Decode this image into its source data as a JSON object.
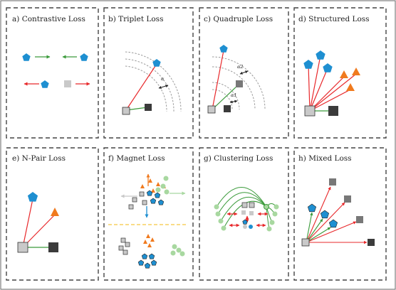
{
  "panels": [
    {
      "id": "contrastive",
      "title": "a) Contrastive Loss"
    },
    {
      "id": "triplet",
      "title": "b) Triplet Loss",
      "labels": [
        "α"
      ]
    },
    {
      "id": "quadruple",
      "title": "c) Quadruple Loss",
      "labels": [
        "α2",
        "α1"
      ]
    },
    {
      "id": "structured",
      "title": "d) Structured Loss"
    },
    {
      "id": "npair",
      "title": "e) N-Pair Loss"
    },
    {
      "id": "magnet",
      "title": "f) Magnet Loss"
    },
    {
      "id": "clustering",
      "title": "g) Clustering Loss"
    },
    {
      "id": "mixed",
      "title": "h) Mixed Loss"
    }
  ],
  "colors": {
    "blue": "#1e8fd1",
    "orange": "#f07a1e",
    "green_line": "#3a9a3a",
    "red_line": "#e8282b",
    "light_green": "#a8d8a0",
    "light_gray_arrow": "#c8c8c8",
    "dark_square": "#3b3b3b",
    "light_square": "#c9c9c9",
    "mid_square": "#787878",
    "circle_dash": "#9a9a9a",
    "divider": "#f5c842",
    "border": "#444444"
  },
  "icons": [
    "pentagon-icon",
    "triangle-icon",
    "square-icon",
    "circle-icon",
    "arrow-icon"
  ]
}
